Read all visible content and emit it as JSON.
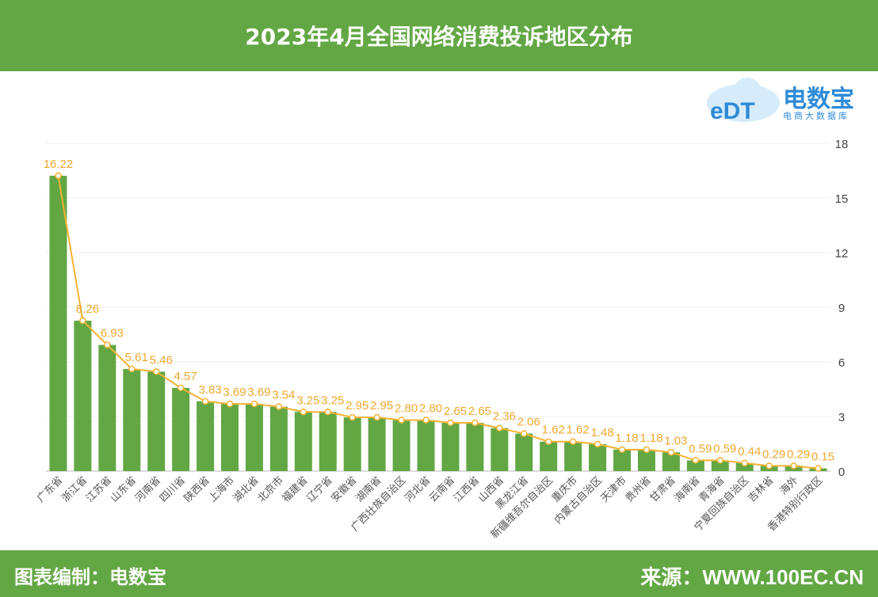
{
  "header": {
    "title": "2023年4月全国网络消费投诉地区分布"
  },
  "logo": {
    "name": "电数宝",
    "sub": "电商大数据库",
    "mark": "eDT"
  },
  "footer": {
    "left": "图表编制：电数宝",
    "right": "来源：WWW.100EC.CN"
  },
  "colors": {
    "bar": "#62a744",
    "line": "#f5b233",
    "label": "#f0a830",
    "band": "#62a744"
  },
  "chart_data": {
    "type": "bar",
    "title": "2023年4月全国网络消费投诉地区分布",
    "categories": [
      "广东省",
      "浙江省",
      "江苏省",
      "山东省",
      "河南省",
      "四川省",
      "陕西省",
      "上海市",
      "湖北省",
      "北京市",
      "福建省",
      "辽宁省",
      "安徽省",
      "湖南省",
      "广西壮族自治区",
      "河北省",
      "云南省",
      "江西省",
      "山西省",
      "黑龙江省",
      "新疆维吾尔自治区",
      "重庆市",
      "内蒙古自治区",
      "天津市",
      "贵州省",
      "甘肃省",
      "海南省",
      "青海省",
      "宁夏回族自治区",
      "吉林省",
      "海外",
      "香港特别行政区"
    ],
    "values": [
      16.22,
      8.26,
      6.93,
      5.61,
      5.46,
      4.57,
      3.83,
      3.69,
      3.69,
      3.54,
      3.25,
      3.25,
      2.95,
      2.95,
      2.8,
      2.8,
      2.65,
      2.65,
      2.36,
      2.06,
      1.62,
      1.62,
      1.48,
      1.18,
      1.18,
      1.03,
      0.59,
      0.59,
      0.44,
      0.29,
      0.29,
      0.15
    ],
    "overlay": "line",
    "ylim": [
      0,
      18
    ],
    "yticks": [
      0,
      3,
      6,
      9,
      12,
      15,
      18
    ],
    "yaxis_position": "right",
    "grid": true,
    "unit": "%"
  }
}
